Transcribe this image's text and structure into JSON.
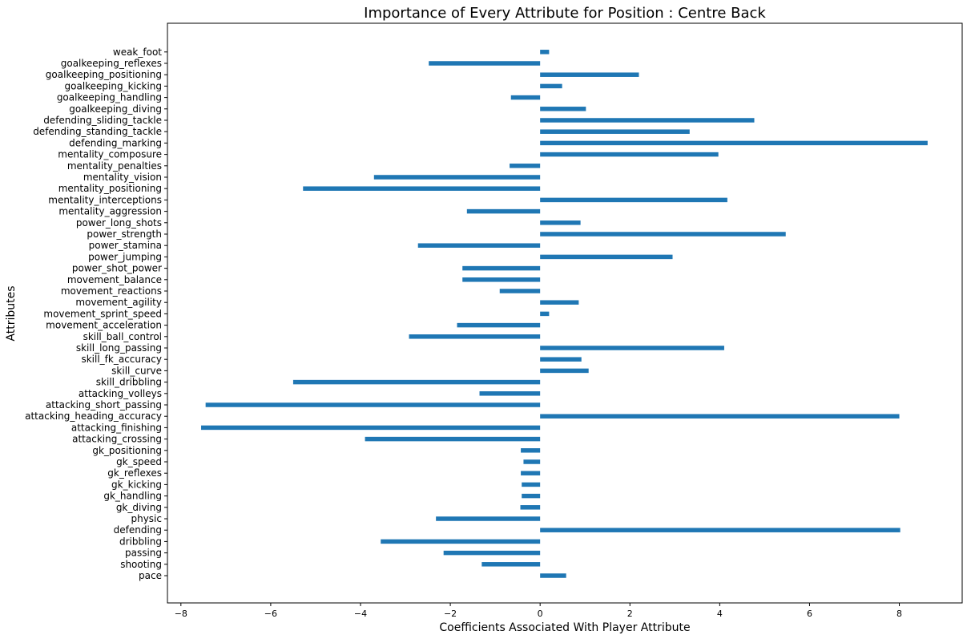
{
  "chart_data": {
    "type": "bar",
    "orientation": "horizontal",
    "title": "Importance of Every Attribute for Position : Centre Back",
    "xlabel": "Coefficients Associated With Player Attribute",
    "ylabel": "Attributes",
    "xlim": [
      -8.3,
      9.4
    ],
    "xticks": [
      -8,
      -6,
      -4,
      -2,
      0,
      2,
      4,
      6,
      8
    ],
    "xtick_labels": [
      "−8",
      "−6",
      "−4",
      "−2",
      "0",
      "2",
      "4",
      "6",
      "8"
    ],
    "grid": false,
    "bar_color": "#1f77b4",
    "categories": [
      "pace",
      "shooting",
      "passing",
      "dribbling",
      "defending",
      "physic",
      "gk_diving",
      "gk_handling",
      "gk_kicking",
      "gk_reflexes",
      "gk_speed",
      "gk_positioning",
      "attacking_crossing",
      "attacking_finishing",
      "attacking_heading_accuracy",
      "attacking_short_passing",
      "attacking_volleys",
      "skill_dribbling",
      "skill_curve",
      "skill_fk_accuracy",
      "skill_long_passing",
      "skill_ball_control",
      "movement_acceleration",
      "movement_sprint_speed",
      "movement_agility",
      "movement_reactions",
      "movement_balance",
      "power_shot_power",
      "power_jumping",
      "power_stamina",
      "power_strength",
      "power_long_shots",
      "mentality_aggression",
      "mentality_interceptions",
      "mentality_positioning",
      "mentality_vision",
      "mentality_penalties",
      "mentality_composure",
      "defending_marking",
      "defending_standing_tackle",
      "defending_sliding_tackle",
      "goalkeeping_diving",
      "goalkeeping_handling",
      "goalkeeping_kicking",
      "goalkeeping_positioning",
      "goalkeeping_reflexes",
      "weak_foot"
    ],
    "values": [
      0.58,
      -1.3,
      -2.15,
      -3.55,
      8.02,
      -2.32,
      -0.44,
      -0.41,
      -0.41,
      -0.43,
      -0.37,
      -0.43,
      -3.9,
      -7.55,
      8.0,
      -7.45,
      -1.35,
      -5.5,
      1.08,
      0.92,
      4.1,
      -2.92,
      -1.85,
      0.2,
      0.86,
      -0.9,
      -1.73,
      -1.73,
      2.95,
      -2.72,
      5.47,
      0.9,
      -1.63,
      4.17,
      -5.28,
      -3.7,
      -0.68,
      3.97,
      8.63,
      3.33,
      4.77,
      1.02,
      -0.65,
      0.49,
      2.2,
      -2.48,
      0.2
    ]
  }
}
